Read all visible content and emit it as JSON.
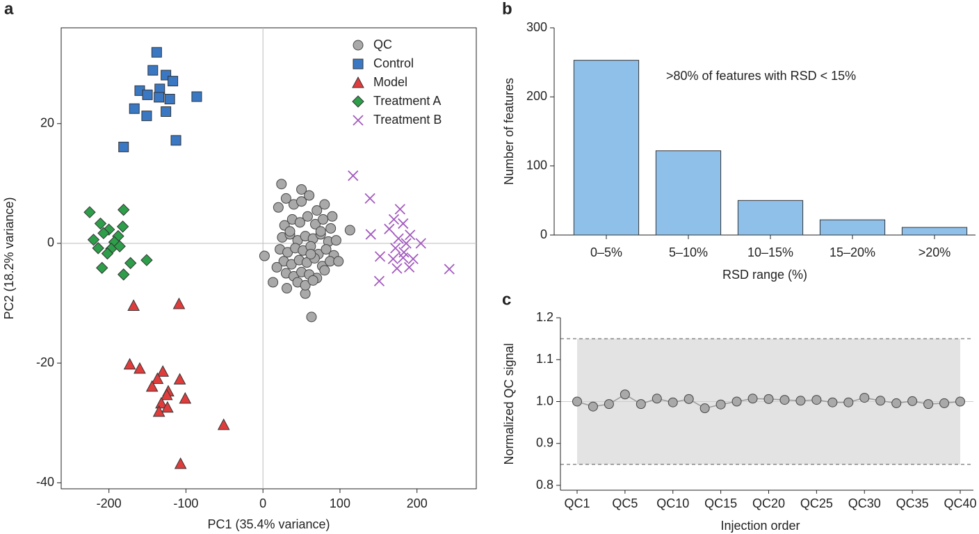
{
  "chart_data": [
    {
      "type": "scatter",
      "panel_label": "a",
      "xlabel": "PC1 (35.4% variance)",
      "ylabel": "PC2 (18.2% variance)",
      "xlim": [
        -262,
        277
      ],
      "ylim": [
        -41,
        36
      ],
      "xticks": [
        -200,
        -100,
        0,
        100,
        200
      ],
      "yticks": [
        -40,
        -20,
        0,
        20
      ],
      "zero_lines": true,
      "legend": "upper right",
      "series": [
        {
          "name": "QC",
          "color": "#a9a9a9",
          "marker": "circle",
          "x": [
            24,
            2,
            13,
            31,
            55,
            63,
            113,
            20,
            30,
            40,
            50,
            60,
            70,
            80,
            90,
            28,
            38,
            48,
            58,
            68,
            78,
            88,
            25,
            35,
            45,
            55,
            65,
            75,
            85,
            95,
            22,
            32,
            42,
            52,
            62,
            72,
            82,
            92,
            27,
            37,
            47,
            57,
            67,
            77,
            87,
            30,
            40,
            50,
            60,
            70,
            80,
            45,
            55,
            65,
            35,
            75,
            18,
            98,
            50,
            62
          ],
          "y": [
            9.9,
            -2.1,
            -6.5,
            -7.5,
            -8.4,
            -12.3,
            2.2,
            6,
            7.5,
            6.5,
            7,
            8,
            5.5,
            6.5,
            4.5,
            3,
            4,
            3.5,
            4.5,
            3.2,
            4,
            2.5,
            1,
            1.5,
            0.5,
            1.2,
            0.8,
            1.5,
            0.3,
            0.5,
            -1,
            -1.5,
            -0.8,
            -1.2,
            -0.5,
            -1.8,
            -1,
            -2,
            -3,
            -3.5,
            -2.8,
            -3.2,
            -2.5,
            -3.8,
            -3,
            -5,
            -5.5,
            -4.8,
            -5.2,
            -5.8,
            -4.5,
            -6.5,
            -7,
            -6.2,
            2,
            2,
            -4,
            -3,
            9,
            -1.8
          ]
        },
        {
          "name": "Control",
          "color": "#3a78c3",
          "marker": "square",
          "x": [
            -138,
            -143,
            -126,
            -117,
            -160,
            -134,
            -150,
            -135,
            -121,
            -86,
            -167,
            -126,
            -151,
            -181,
            -113
          ],
          "y": [
            31.9,
            28.9,
            28.1,
            27.1,
            25.5,
            25.8,
            24.8,
            24.4,
            24.1,
            24.5,
            22.5,
            22.0,
            21.3,
            16.1,
            17.2
          ]
        },
        {
          "name": "Model",
          "color": "#e03c3c",
          "marker": "triangle",
          "x": [
            -168,
            -109,
            -173,
            -160,
            -130,
            -137,
            -108,
            -144,
            -123,
            -125,
            -101,
            -132,
            -124,
            -135,
            -51,
            -107
          ],
          "y": [
            -10.4,
            -10.1,
            -20.2,
            -20.9,
            -21.4,
            -22.6,
            -22.7,
            -23.9,
            -24.7,
            -25.3,
            -25.9,
            -26.7,
            -27.4,
            -28.1,
            -30.3,
            -36.8
          ]
        },
        {
          "name": "Treatment A",
          "color": "#2e9e4a",
          "marker": "diamond",
          "x": [
            -225,
            -181,
            -211,
            -220,
            -200,
            -207,
            -188,
            -182,
            -214,
            -193,
            -197,
            -186,
            -202,
            -172,
            -151,
            -209,
            -181
          ],
          "y": [
            5.2,
            5.6,
            3.3,
            0.6,
            2.3,
            1.7,
            1.2,
            2.8,
            -0.8,
            0.2,
            -0.9,
            -0.5,
            -1.7,
            -3.3,
            -2.8,
            -4.1,
            -5.2
          ]
        },
        {
          "name": "Treatment B",
          "color": "#a35bbf",
          "marker": "x",
          "x": [
            117,
            139,
            178,
            170,
            182,
            164,
            140,
            191,
            176,
            186,
            205,
            172,
            183,
            152,
            169,
            195,
            182,
            174,
            190,
            242,
            151
          ],
          "y": [
            11.3,
            7.5,
            5.7,
            4.0,
            3.3,
            2.4,
            1.5,
            1.4,
            0.8,
            0,
            0,
            -0.8,
            -1.5,
            -2.2,
            -2.6,
            -2.6,
            -2.4,
            -4.2,
            -4.0,
            -4.3,
            -6.3
          ]
        }
      ]
    },
    {
      "type": "bar",
      "panel_label": "b",
      "xlabel": "RSD range (%)",
      "ylabel": "Number of features",
      "annotation": ">80% of features with RSD < 15%",
      "categories": [
        "0–5%",
        "5–10%",
        "10–15%",
        "15–20%",
        ">20%"
      ],
      "values": [
        253,
        122,
        50,
        22,
        11
      ],
      "color": "#8fc0ea",
      "ylim": [
        0,
        300
      ],
      "yticks": [
        0,
        100,
        200,
        300
      ]
    },
    {
      "type": "line",
      "panel_label": "c",
      "xlabel": "Injection order",
      "ylabel": "Normalized QC signal",
      "categories": [
        "QC1",
        null,
        null,
        "QC5",
        null,
        null,
        "QC10",
        null,
        null,
        "QC15",
        null,
        null,
        "QC20",
        null,
        null,
        "QC25",
        null,
        null,
        "QC30",
        null,
        null,
        "QC35",
        null,
        null,
        "QC40"
      ],
      "values": [
        1.0,
        0.988,
        0.994,
        1.017,
        0.994,
        1.007,
        0.998,
        1.006,
        0.984,
        0.993,
        1.0,
        1.007,
        1.006,
        1.004,
        1.002,
        1.004,
        0.998,
        0.998,
        1.009,
        1.002,
        0.996,
        1.001,
        0.994,
        0.996,
        1.0
      ],
      "color": "#a9a9a9",
      "band": [
        0.85,
        1.15
      ],
      "reference_line": 1,
      "ylim": [
        0.8,
        1.2
      ],
      "yticks": [
        0.8,
        0.9,
        {
          "value": 1,
          "label": "1.0"
        },
        1.1,
        1.2
      ]
    }
  ]
}
